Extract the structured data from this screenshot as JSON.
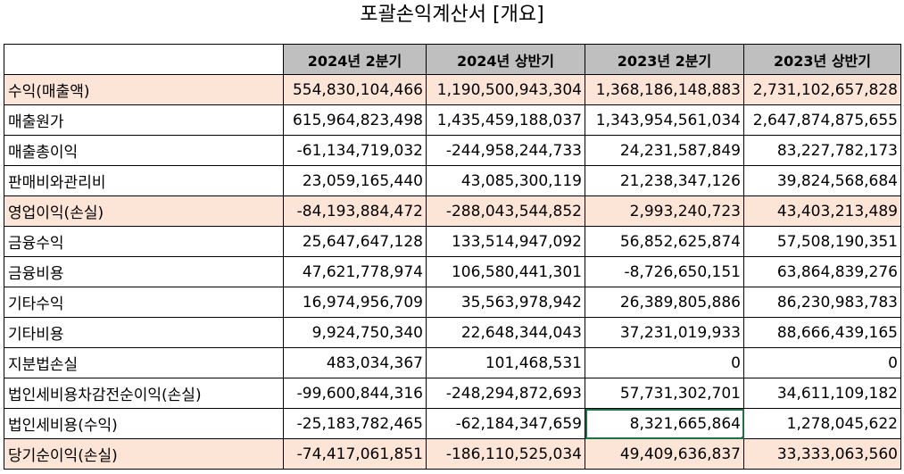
{
  "title": "포괄손익계산서 [개요]",
  "columns": [
    "",
    "2024년 2분기",
    "2024년 상반기",
    "2023년 2분기",
    "2023년 상반기"
  ],
  "highlight_color": "#fce4d6",
  "header_color": "#bfbfbf",
  "rows": [
    {
      "label": "수익(매출액)",
      "values": [
        "554,830,104,466",
        "1,190,500,943,304",
        "1,368,186,148,883",
        "2,731,102,657,828"
      ],
      "highlight": true
    },
    {
      "label": "매출원가",
      "values": [
        "615,964,823,498",
        "1,435,459,188,037",
        "1,343,954,561,034",
        "2,647,874,875,655"
      ],
      "highlight": false
    },
    {
      "label": "매출총이익",
      "values": [
        "-61,134,719,032",
        "-244,958,244,733",
        "24,231,587,849",
        "83,227,782,173"
      ],
      "highlight": false
    },
    {
      "label": "판매비와관리비",
      "values": [
        "23,059,165,440",
        "43,085,300,119",
        "21,238,347,126",
        "39,824,568,684"
      ],
      "highlight": false
    },
    {
      "label": "영업이익(손실)",
      "values": [
        "-84,193,884,472",
        "-288,043,544,852",
        "2,993,240,723",
        "43,403,213,489"
      ],
      "highlight": true
    },
    {
      "label": "금융수익",
      "values": [
        "25,647,647,128",
        "133,514,947,092",
        "56,852,625,874",
        "57,508,190,351"
      ],
      "highlight": false
    },
    {
      "label": "금융비용",
      "values": [
        "47,621,778,974",
        "106,580,441,301",
        "-8,726,650,151",
        "63,864,839,276"
      ],
      "highlight": false
    },
    {
      "label": "기타수익",
      "values": [
        "16,974,956,709",
        "35,563,978,942",
        "26,389,805,886",
        "86,230,983,783"
      ],
      "highlight": false
    },
    {
      "label": "기타비용",
      "values": [
        "9,924,750,340",
        "22,648,344,043",
        "37,231,019,933",
        "88,666,439,165"
      ],
      "highlight": false
    },
    {
      "label": "지분법손실",
      "values": [
        "483,034,367",
        "101,468,531",
        "0",
        "0"
      ],
      "highlight": false
    },
    {
      "label": "법인세비용차감전순이익(손실)",
      "values": [
        "-99,600,844,316",
        "-248,294,872,693",
        "57,731,302,701",
        "34,611,109,182"
      ],
      "highlight": false
    },
    {
      "label": "법인세비용(수익)",
      "values": [
        "-25,183,782,465",
        "-62,184,347,659",
        "8,321,665,864",
        "1,278,045,622"
      ],
      "highlight": false
    },
    {
      "label": "당기순이익(손실)",
      "values": [
        "-74,417,061,851",
        "-186,110,525,034",
        "49,409,636,837",
        "33,333,063,560"
      ],
      "highlight": true
    }
  ]
}
